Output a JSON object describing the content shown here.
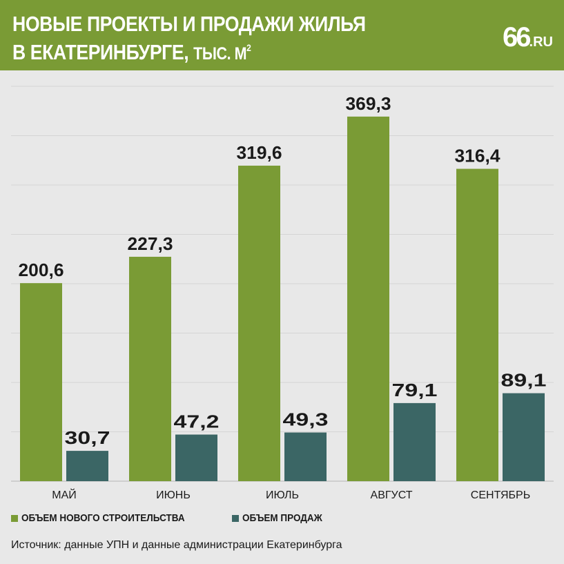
{
  "header": {
    "title_line1": "НОВЫЕ ПРОЕКТЫ И ПРОДАЖИ ЖИЛЬЯ",
    "title_line2": "В ЕКАТЕРИНБУРГЕ,",
    "title_unit": "ТЫС. М",
    "title_unit_sup": "2",
    "logo_number": "66",
    "logo_domain": ".RU"
  },
  "colors": {
    "header_bg": "#7a9b35",
    "new_construction": "#7a9b35",
    "sales": "#3b6665",
    "background": "#e8e8e8"
  },
  "chart_data": {
    "type": "bar",
    "categories": [
      "МАЙ",
      "ИЮНЬ",
      "ИЮЛЬ",
      "АВГУСТ",
      "СЕНТЯБРЬ"
    ],
    "series": [
      {
        "name": "ОБЪЕМ НОВОГО СТРОИТЕЛЬСТВА",
        "values": [
          200.6,
          227.3,
          319.6,
          369.3,
          316.4
        ],
        "labels": [
          "200,6",
          "227,3",
          "319,6",
          "369,3",
          "316,4"
        ]
      },
      {
        "name": "ОБЪЕМ ПРОДАЖ",
        "values": [
          30.7,
          47.2,
          49.3,
          79.1,
          89.1
        ],
        "labels": [
          "30,7",
          "47,2",
          "49,3",
          "79,1",
          "89,1"
        ]
      }
    ],
    "ylim": [
      0,
      400
    ],
    "grid": true,
    "legend_position": "bottom-left"
  },
  "legend": {
    "items": [
      {
        "label": "ОБЪЕМ НОВОГО СТРОИТЕЛЬСТВА",
        "color": "#7a9b35"
      },
      {
        "label": "ОБЪЕМ ПРОДАЖ",
        "color": "#3b6665"
      }
    ]
  },
  "source": "Источник: данные УПН и данные администрации Екатеринбурга"
}
